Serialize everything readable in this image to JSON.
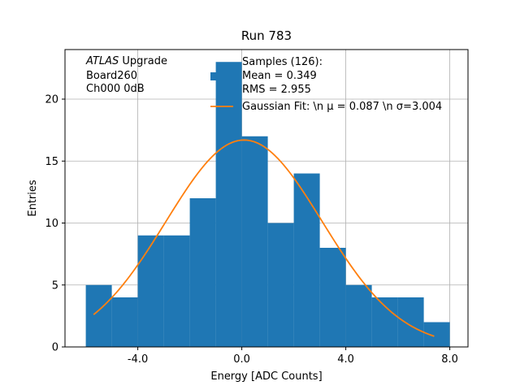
{
  "chart_data": {
    "type": "bar",
    "title": "Run 783",
    "xlabel": "Energy [ADC Counts]",
    "ylabel": "Entries",
    "xlim": [
      -6.8,
      8.7
    ],
    "ylim": [
      0,
      24
    ],
    "x_ticks": [
      -4.0,
      0.0,
      4.0,
      8.0
    ],
    "x_tick_labels": [
      "-4.0",
      "0.0",
      "4.0",
      "8.0"
    ],
    "y_ticks": [
      0,
      5,
      10,
      15,
      20
    ],
    "y_tick_labels": [
      "0",
      "5",
      "10",
      "15",
      "20"
    ],
    "grid": true,
    "bin_edges": [
      -6,
      -5,
      -4,
      -3,
      -2,
      -1,
      0,
      1,
      2,
      3,
      4,
      5,
      6,
      7,
      8
    ],
    "values": [
      5,
      4,
      9,
      9,
      12,
      23,
      17,
      10,
      14,
      8,
      5,
      4,
      4,
      2
    ],
    "bar_color": "#1f77b4",
    "fit": {
      "name": "Gaussian Fit: \\n $\\mu$ = 0.087 \\n $\\sigma$=3.004",
      "legend_label": "Gaussian Fit: \\n μ = 0.087 \\n σ=3.004",
      "mu": 0.087,
      "sigma": 3.004,
      "amplitude": 16.7,
      "x_range": [
        -5.7,
        7.4
      ],
      "color": "#ff7f0e"
    },
    "legend": {
      "placement": "top-right",
      "samples_label": "Samples (126):",
      "mean_label": "Mean = 0.349",
      "rms_label": "RMS = 2.955"
    },
    "annotation": {
      "experiment_italic": "ATLAS",
      "experiment_rest": " Upgrade",
      "line2": "Board260",
      "line3": "Ch000 0dB"
    }
  }
}
